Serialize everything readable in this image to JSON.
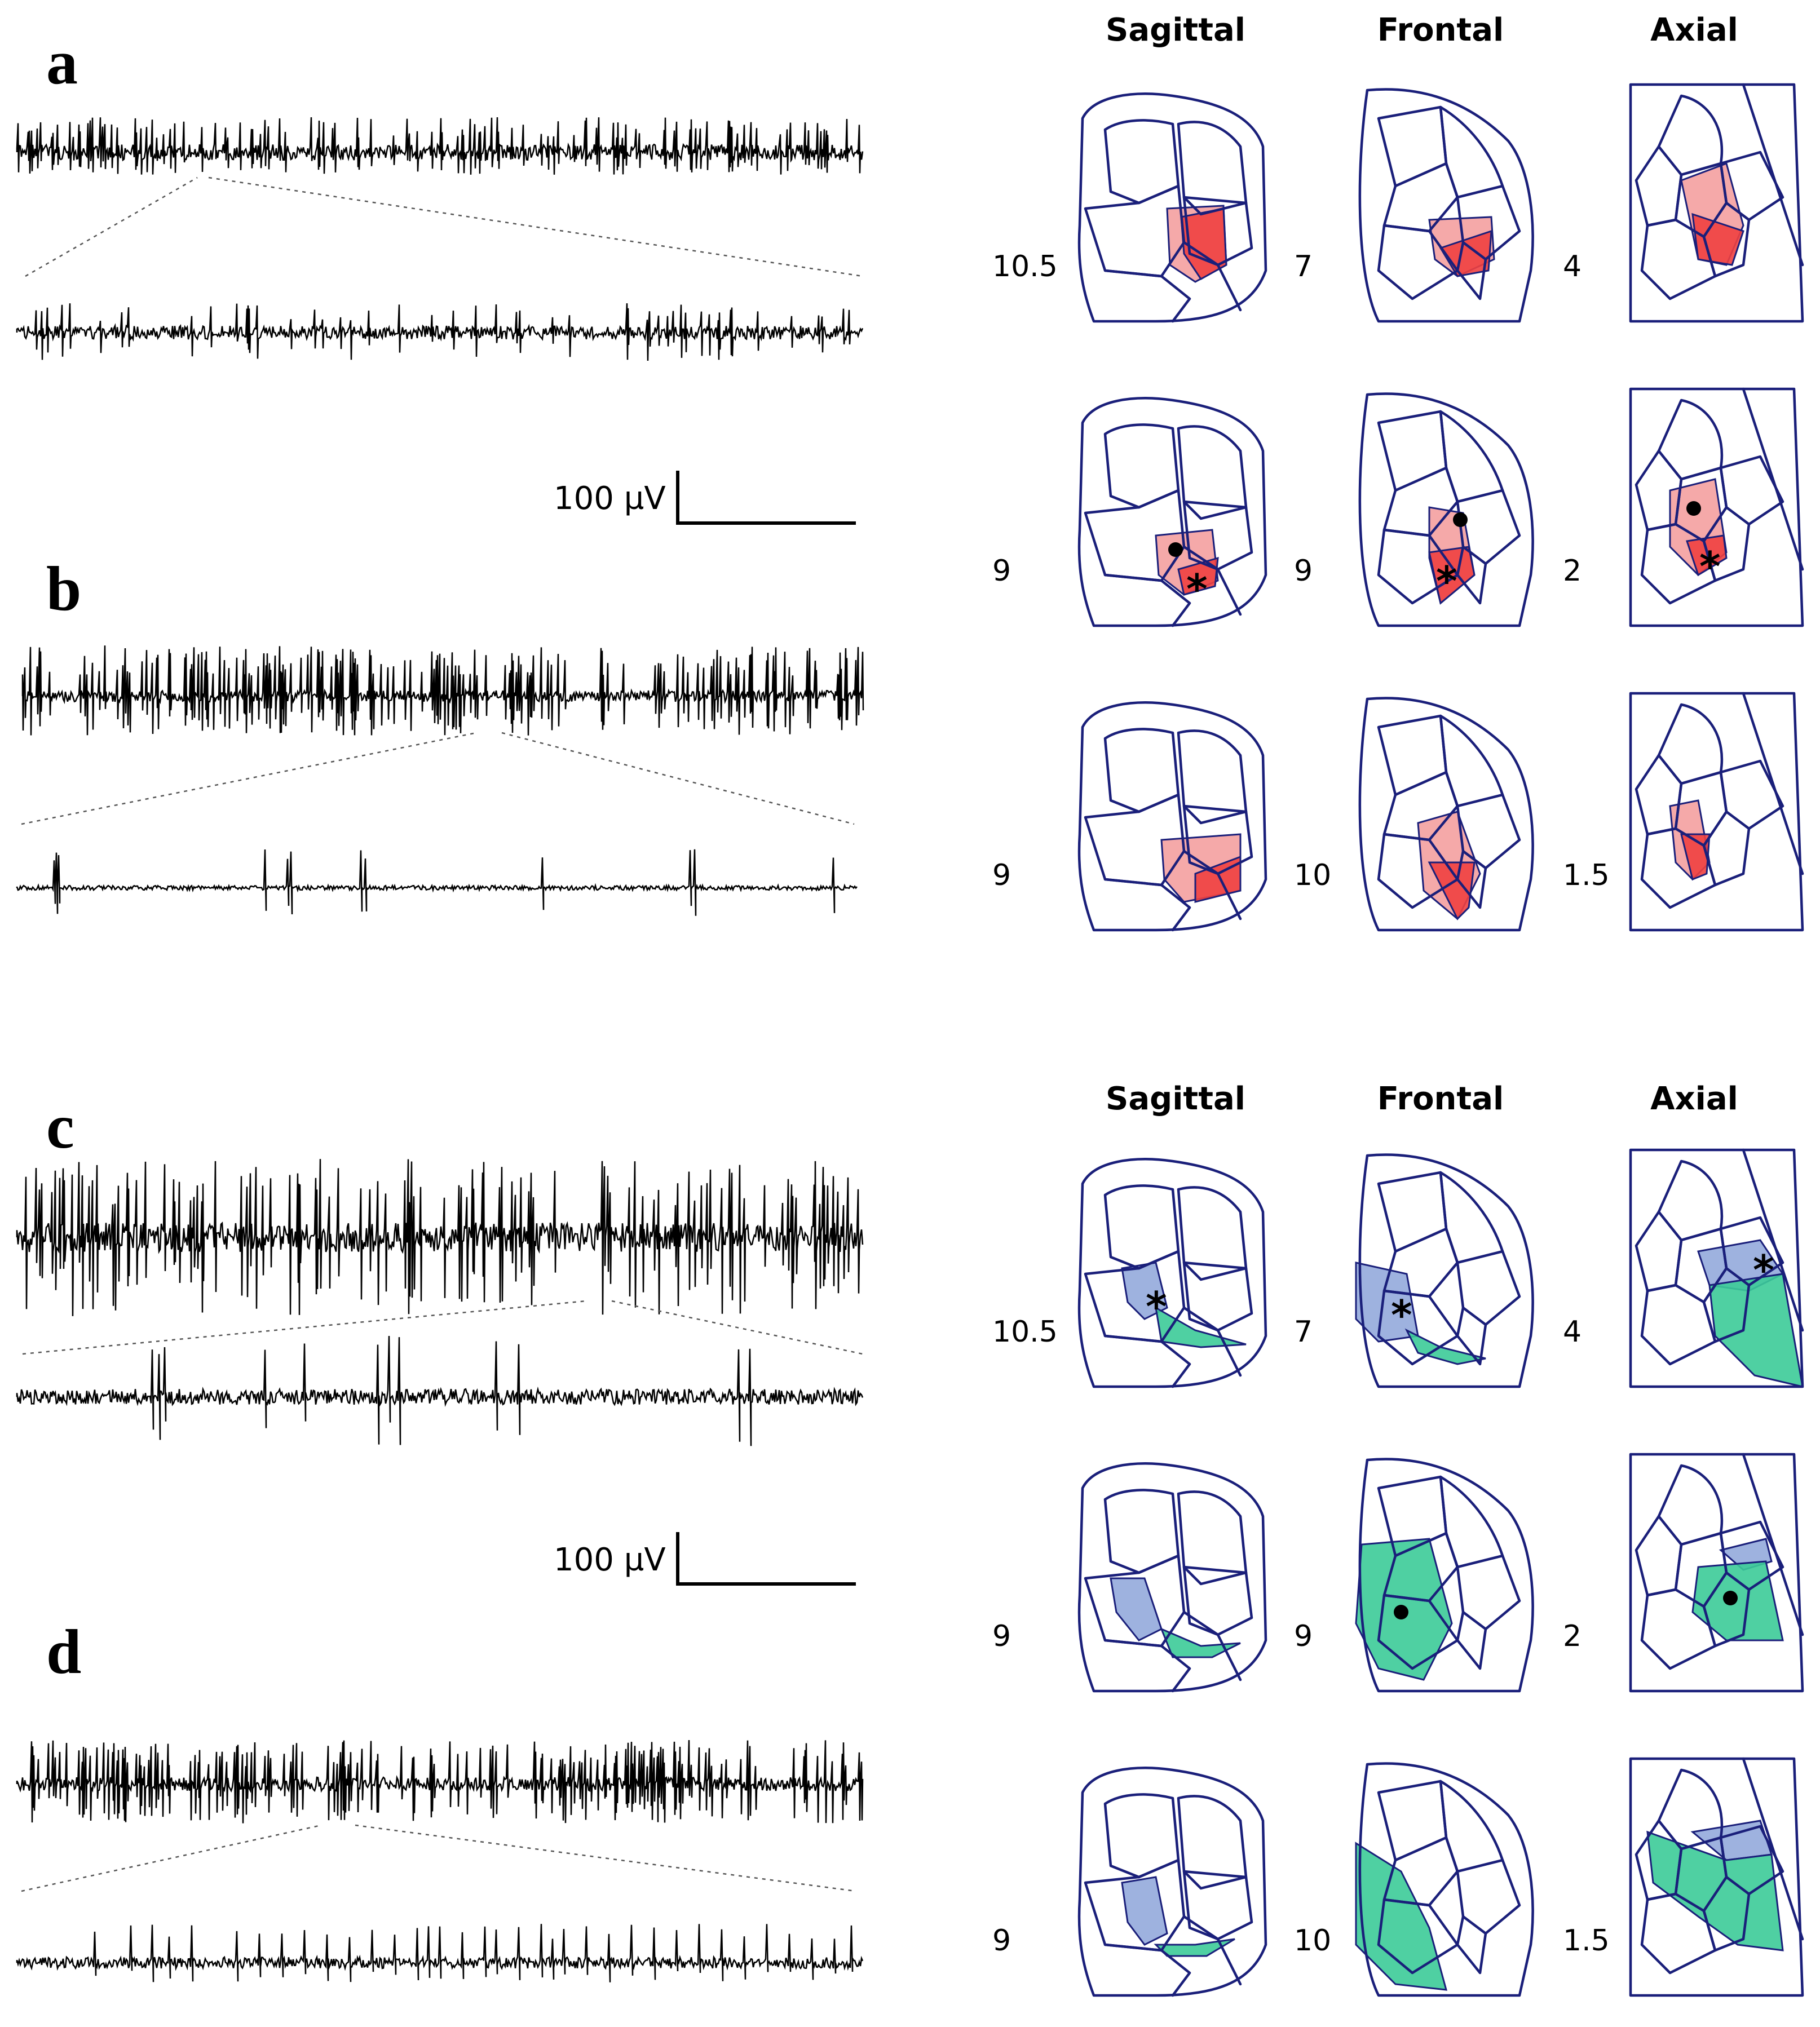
{
  "panels": {
    "a": {
      "label": "a"
    },
    "b": {
      "label": "b"
    },
    "c": {
      "label": "c"
    },
    "d": {
      "label": "d"
    }
  },
  "scale_bars": [
    {
      "text": "100 µV"
    },
    {
      "text": "100 µV"
    }
  ],
  "atlas_groups": [
    {
      "column_headers": [
        "Sagittal",
        "Frontal",
        "Axial"
      ],
      "accent": {
        "light": "#f4a0a0",
        "dark": "#ef4040"
      },
      "rows": [
        {
          "levels": [
            "10.5",
            "7",
            "4"
          ]
        },
        {
          "levels": [
            "9",
            "9",
            "2"
          ]
        },
        {
          "levels": [
            "9",
            "10",
            "1.5"
          ]
        }
      ]
    },
    {
      "column_headers": [
        "Sagittal",
        "Frontal",
        "Axial"
      ],
      "accent": {
        "light": "#93aadc",
        "dark": "#3ccb98"
      },
      "rows": [
        {
          "levels": [
            "10.5",
            "7",
            "4"
          ]
        },
        {
          "levels": [
            "9",
            "9",
            "2"
          ]
        },
        {
          "levels": [
            "9",
            "10",
            "1.5"
          ]
        }
      ]
    }
  ],
  "colors": {
    "trace": "#000000",
    "outline": "#1a1f7a",
    "red_light": "#f4a0a0",
    "red_dark": "#ef4040",
    "blue": "#93aadc",
    "green": "#3ccb98"
  }
}
